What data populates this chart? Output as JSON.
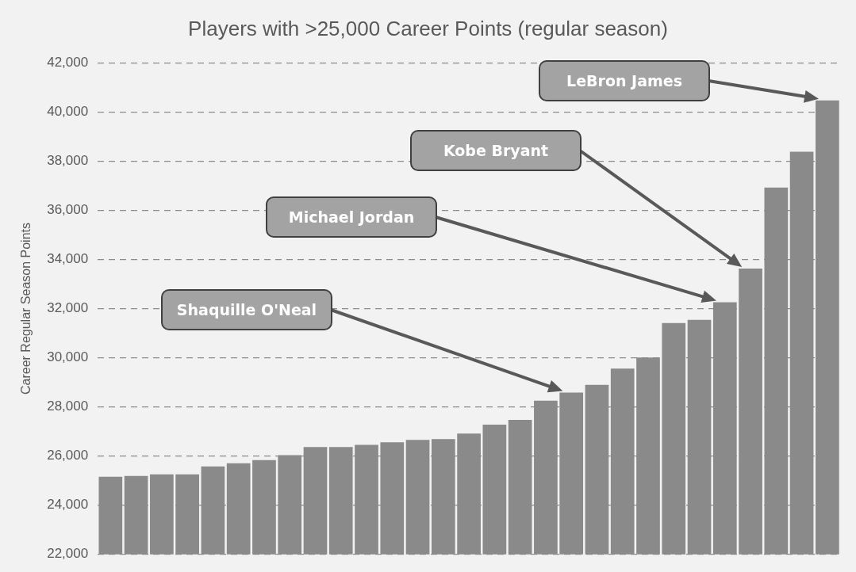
{
  "chart_data": {
    "type": "bar",
    "title": "Players with >25,000 Career Points (regular season)",
    "ylabel": "Career Regular Season Points",
    "categories": [
      null,
      null,
      null,
      null,
      null,
      null,
      null,
      null,
      null,
      null,
      null,
      null,
      null,
      null,
      null,
      null,
      null,
      null,
      null,
      null,
      null,
      null,
      null,
      null,
      null,
      null,
      null,
      null,
      null
    ],
    "values": [
      25160,
      25190,
      25260,
      25260,
      25580,
      25710,
      25840,
      26040,
      26370,
      26370,
      26460,
      26560,
      26660,
      26690,
      26920,
      27280,
      27470,
      28250,
      28580,
      28900,
      29560,
      30010,
      31410,
      31540,
      32260,
      33630,
      36920,
      38380,
      40470
    ],
    "color": "#8a8a8a",
    "ylim": [
      22000,
      42000
    ],
    "yticks": [
      {
        "value": 22000,
        "label": "22,000"
      },
      {
        "value": 24000,
        "label": "24,000"
      },
      {
        "value": 26000,
        "label": "26,000"
      },
      {
        "value": 28000,
        "label": "28,000"
      },
      {
        "value": 30000,
        "label": "30,000"
      },
      {
        "value": 32000,
        "label": "32,000"
      },
      {
        "value": 34000,
        "label": "34,000"
      },
      {
        "value": 36000,
        "label": "36,000"
      },
      {
        "value": 38000,
        "label": "38,000"
      },
      {
        "value": 40000,
        "label": "40,000"
      },
      {
        "value": 42000,
        "label": "42,000"
      }
    ],
    "grid": "y",
    "tick_labels": "y",
    "annotations": [
      "LeBron James",
      "Kobe Bryant",
      "Michael Jordan",
      "Shaquille O'Neal"
    ]
  }
}
